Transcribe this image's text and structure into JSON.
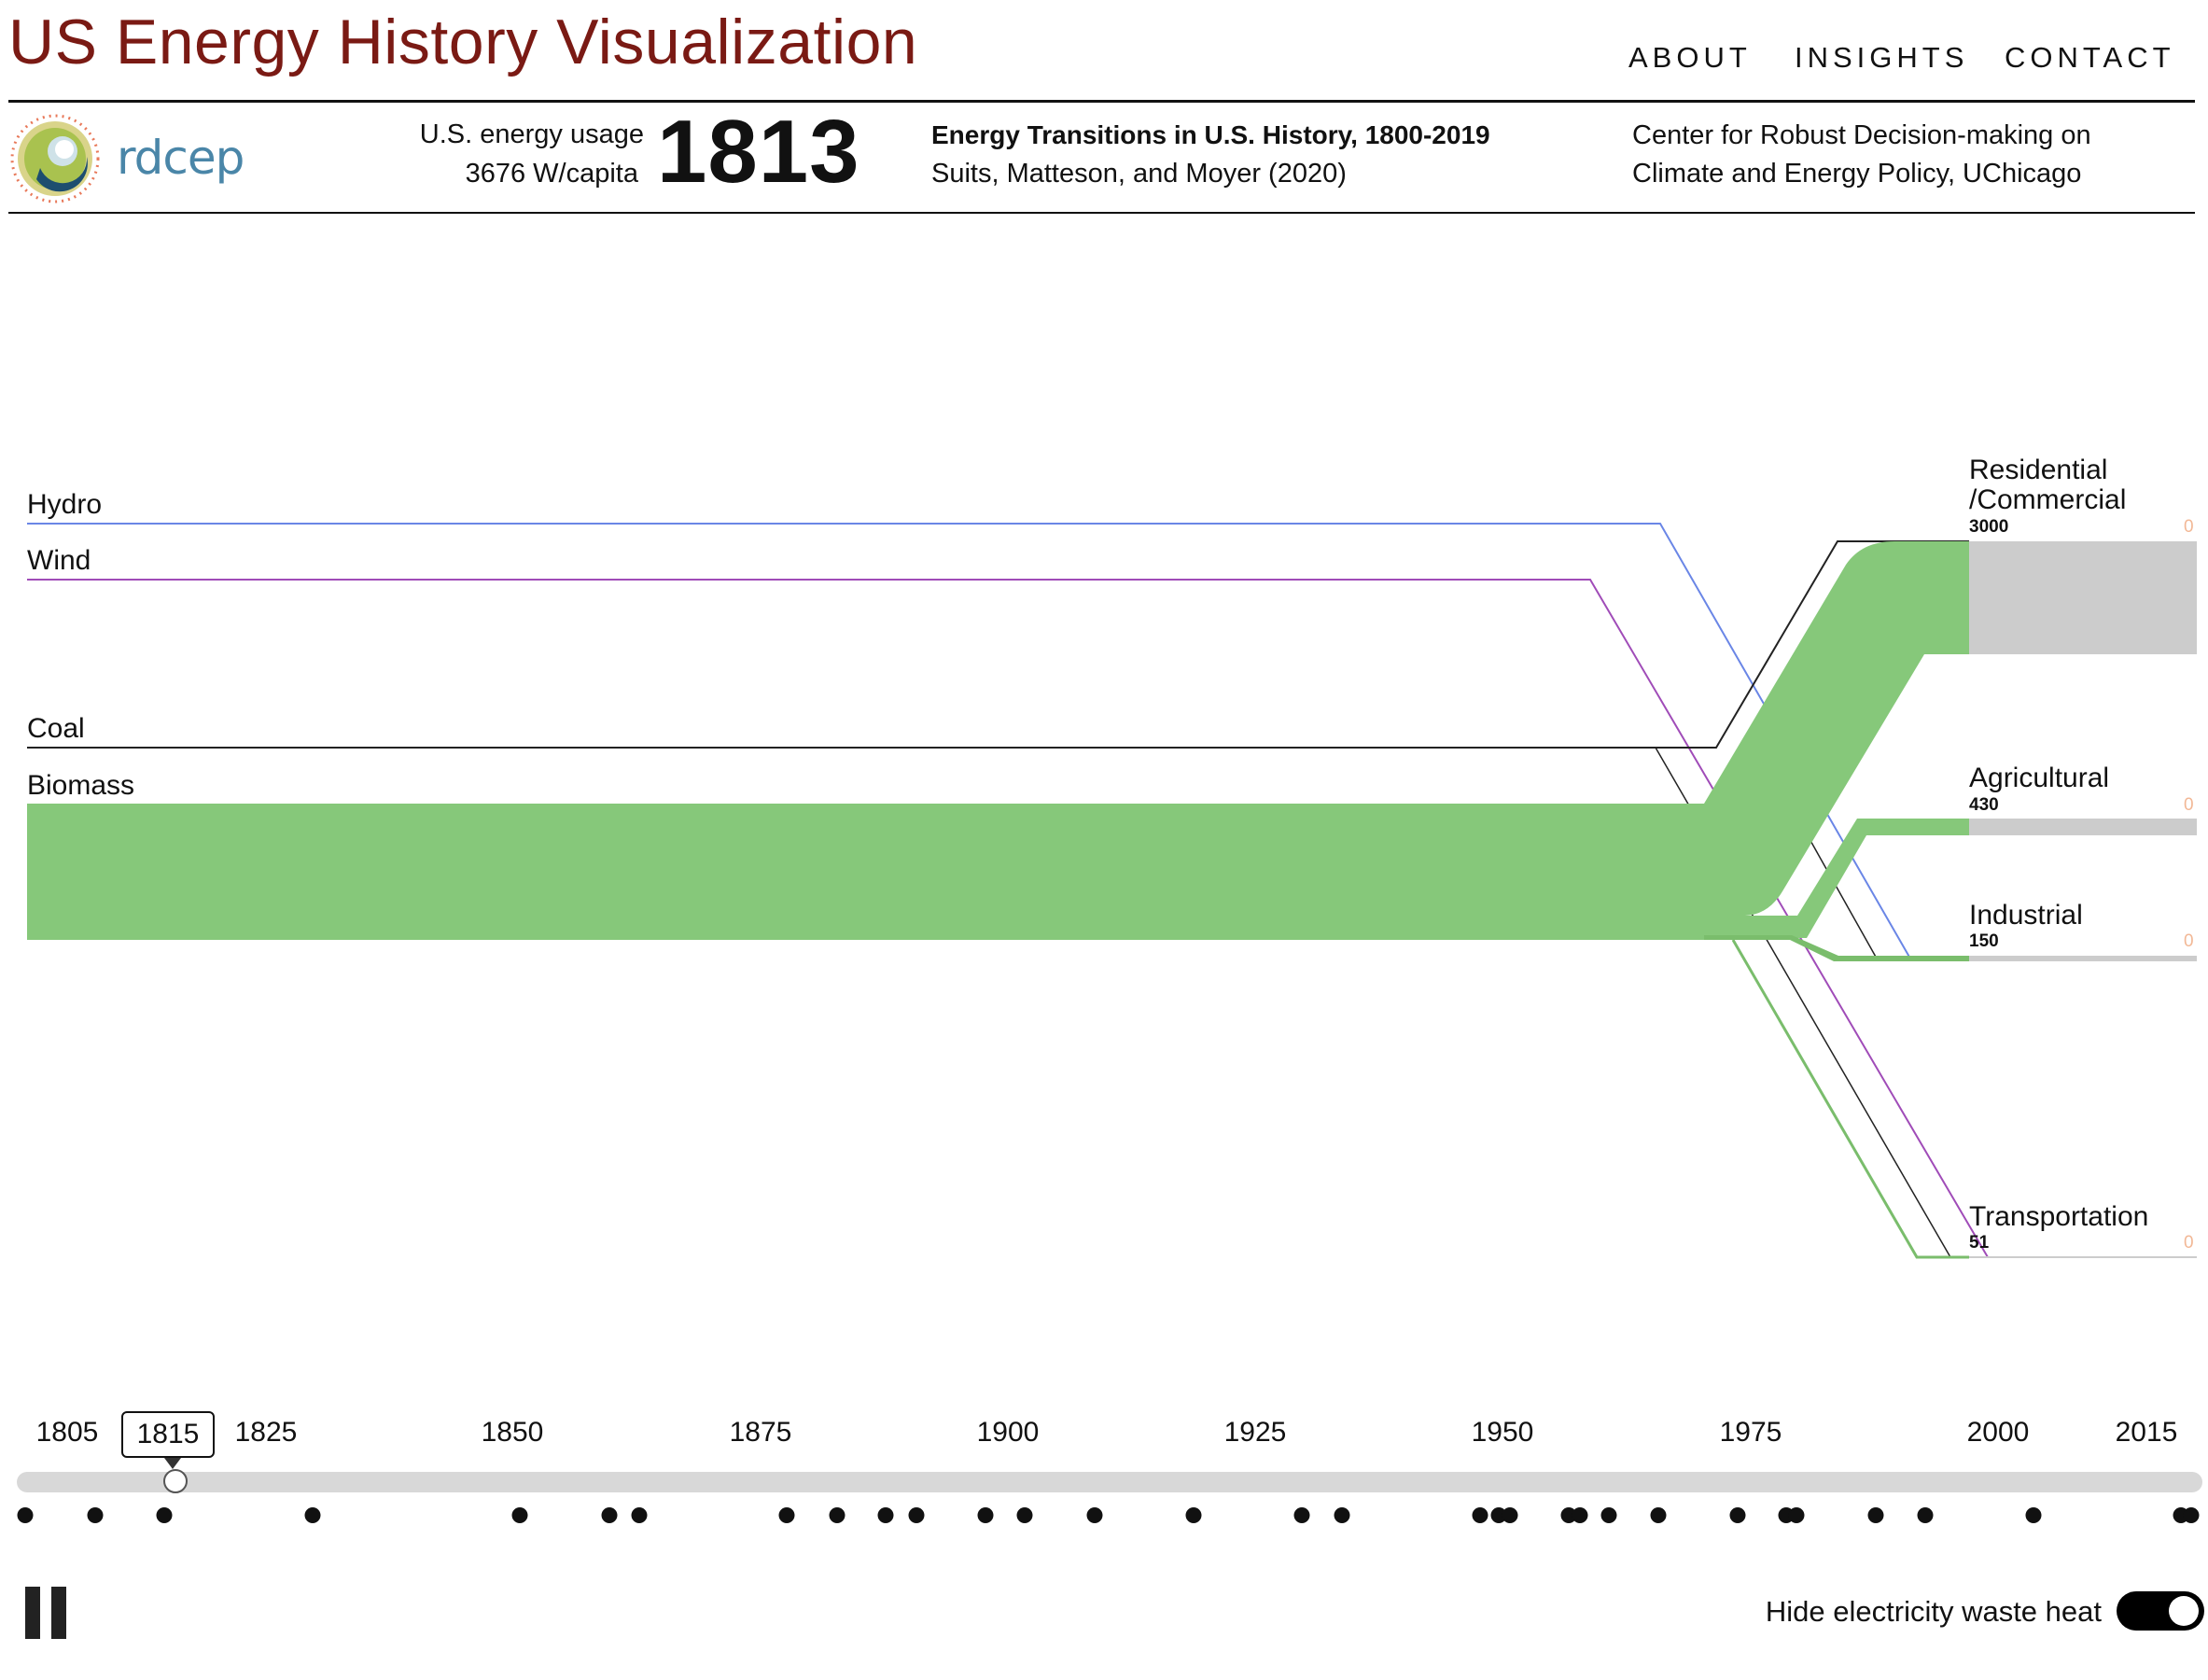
{
  "header": {
    "title": "US Energy History Visualization",
    "nav": [
      "ABOUT",
      "INSIGHTS",
      "CONTACT"
    ]
  },
  "info_bar": {
    "logo_text": "rdcep",
    "usage_label": "U.S. energy usage",
    "usage_value": "3676 W/capita",
    "year": "1813",
    "paper_title": "Energy Transitions in U.S. History, 1800-2019",
    "paper_authors": "Suits, Matteson, and Moyer (2020)",
    "center_line1": "Center for Robust Decision-making on",
    "center_line2": "Climate and Energy Policy, UChicago"
  },
  "sankey": {
    "sources": [
      {
        "name": "Hydro",
        "color": "#6a86e6"
      },
      {
        "name": "Wind",
        "color": "#a04cb8"
      },
      {
        "name": "Coal",
        "color": "#222222"
      },
      {
        "name": "Biomass",
        "color": "#86c87a"
      }
    ],
    "sinks": [
      {
        "name_line1": "Residential",
        "name_line2": "/Commercial",
        "value": "3000",
        "waste": "0"
      },
      {
        "name_line1": "Agricultural",
        "name_line2": "",
        "value": "430",
        "waste": "0"
      },
      {
        "name_line1": "Industrial",
        "name_line2": "",
        "value": "150",
        "waste": "0"
      },
      {
        "name_line1": "Transportation",
        "name_line2": "",
        "value": "51",
        "waste": "0"
      }
    ],
    "colors": {
      "biomass": "#86c87a",
      "sink_bar": "#cccccc",
      "waste_text": "#f2b896"
    }
  },
  "timeline": {
    "tick_labels": [
      "1805",
      "1815",
      "1825",
      "1850",
      "1875",
      "1900",
      "1925",
      "1950",
      "1975",
      "2000",
      "2015"
    ],
    "selected_label": "1815",
    "dots": 37
  },
  "controls": {
    "toggle_label": "Hide electricity waste heat",
    "toggle_on": true
  }
}
